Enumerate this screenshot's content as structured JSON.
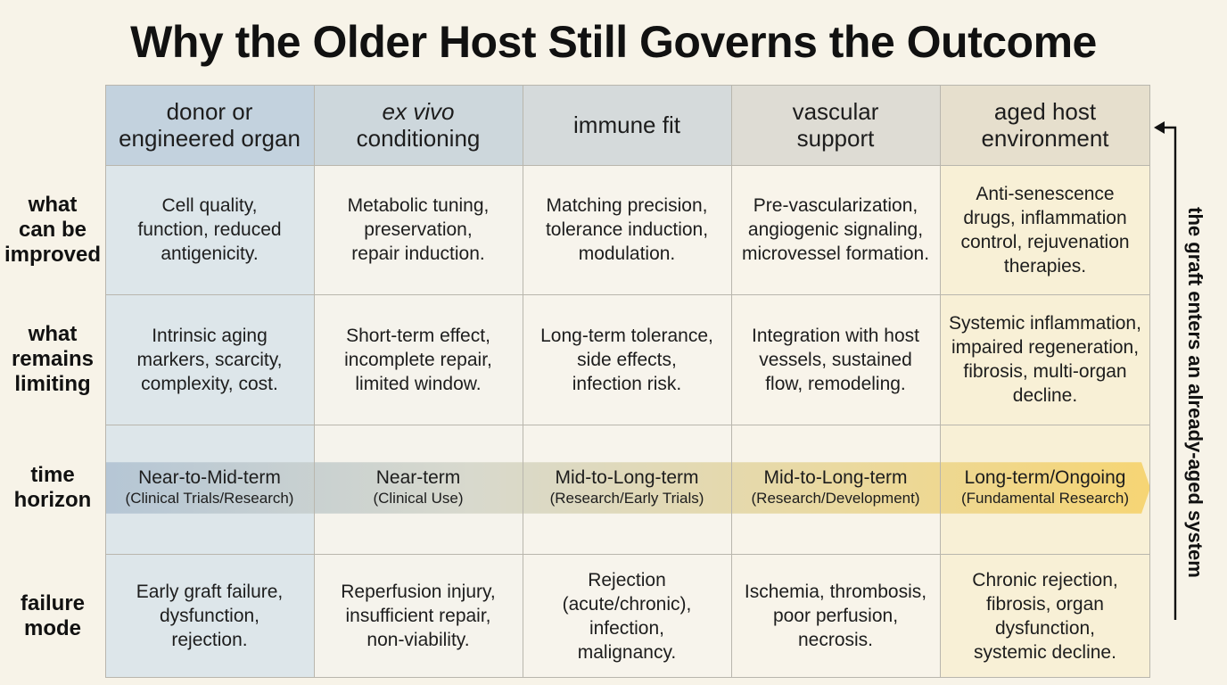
{
  "title": "Why the Older Host Still Governs the Outcome",
  "columns": [
    {
      "label_lines": [
        "donor or",
        "engineered organ"
      ],
      "italic_first": false
    },
    {
      "label_lines": [
        "ex vivo",
        "conditioning"
      ],
      "italic_first": true
    },
    {
      "label_lines": [
        "immune fit"
      ],
      "italic_first": false
    },
    {
      "label_lines": [
        "vascular",
        "support"
      ],
      "italic_first": false
    },
    {
      "label_lines": [
        "aged host",
        "environment"
      ],
      "italic_first": false
    }
  ],
  "rows": [
    {
      "label_lines": [
        "what",
        "can be",
        "improved"
      ],
      "cells": [
        [
          "Cell quality,",
          "function, reduced",
          "antigenicity."
        ],
        [
          "Metabolic tuning,",
          "preservation,",
          "repair induction."
        ],
        [
          "Matching precision,",
          "tolerance induction,",
          "modulation."
        ],
        [
          "Pre-vascularization,",
          "angiogenic signaling,",
          "microvessel formation."
        ],
        [
          "Anti-senescence",
          "drugs, inflammation",
          "control, rejuvenation",
          "therapies."
        ]
      ]
    },
    {
      "label_lines": [
        "what",
        "remains",
        "limiting"
      ],
      "cells": [
        [
          "Intrinsic aging",
          "markers, scarcity,",
          "complexity, cost."
        ],
        [
          "Short-term effect,",
          "incomplete repair,",
          "limited window."
        ],
        [
          "Long-term tolerance,",
          "side effects,",
          "infection risk."
        ],
        [
          "Integration with host",
          "vessels, sustained",
          "flow, remodeling."
        ],
        [
          "Systemic inflammation,",
          "impaired regeneration,",
          "fibrosis, multi-organ",
          "decline."
        ]
      ]
    },
    {
      "label_lines": [
        "time",
        "horizon"
      ],
      "timeline": [
        {
          "main": "Near-to-Mid-term",
          "sub": "(Clinical Trials/Research)"
        },
        {
          "main": "Near-term",
          "sub": "(Clinical Use)"
        },
        {
          "main": "Mid-to-Long-term",
          "sub": "(Research/Early Trials)"
        },
        {
          "main": "Mid-to-Long-term",
          "sub": "(Research/Development)"
        },
        {
          "main": "Long-term/Ongoing",
          "sub": "(Fundamental Research)"
        }
      ]
    },
    {
      "label_lines": [
        "failure",
        "mode"
      ],
      "cells": [
        [
          "Early graft failure,",
          "dysfunction,",
          "rejection."
        ],
        [
          "Reperfusion injury,",
          "insufficient repair,",
          "non-viability."
        ],
        [
          "Rejection",
          "(acute/chronic),",
          "infection,",
          "malignancy."
        ],
        [
          "Ischemia, thrombosis,",
          "poor perfusion,",
          "necrosis."
        ],
        [
          "Chronic rejection,",
          "fibrosis, organ",
          "dysfunction,",
          "systemic decline."
        ]
      ]
    }
  ],
  "side_note": "the graft enters an already-aged system",
  "colors": {
    "background": "#f7f3e8",
    "col1_header": "#c2d1de",
    "col1_body": "#dfe7ea",
    "col5_header": "#e6dfcc",
    "col5_body": "#f8f0d4",
    "band_start": "#b8c8d6",
    "band_end": "#f5d77e",
    "arrow": "#111111"
  },
  "icons": [
    "arrow-left-icon"
  ]
}
